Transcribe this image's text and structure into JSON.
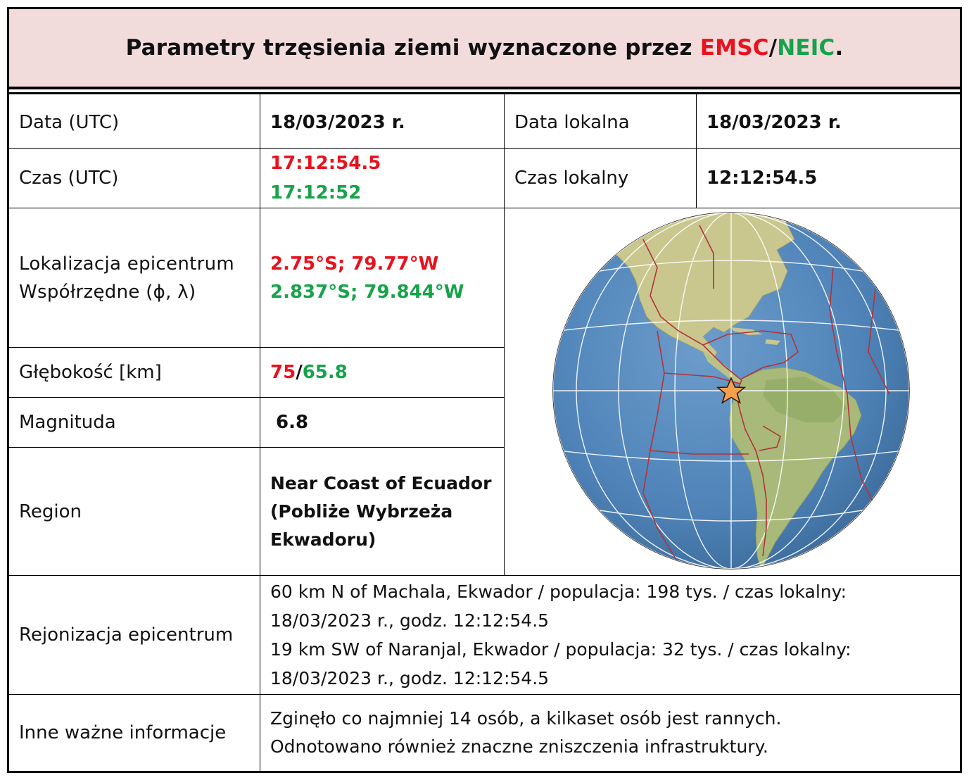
{
  "header": {
    "title_prefix": "Parametry trzęsienia ziemi wyznaczone przez ",
    "agency1": "EMSC",
    "separator": "/",
    "agency2": "NEIC",
    "suffix": "."
  },
  "colors": {
    "emsc": "#e8121e",
    "neic": "#16a34a",
    "header_bg": "#f2dcdb"
  },
  "rows": {
    "date_utc": {
      "label": "Data (UTC)",
      "value": "18/03/2023 r."
    },
    "date_local": {
      "label": "Data lokalna",
      "value": "18/03/2023 r."
    },
    "time_utc": {
      "label": "Czas (UTC)",
      "value_emsc": "17:12:54.5",
      "value_neic": "17:12:52"
    },
    "time_local": {
      "label": "Czas lokalny",
      "value": "12:12:54.5"
    },
    "location": {
      "label_line1": "Lokalizacja epicentrum",
      "label_line2": "Współrzędne (ϕ, λ)",
      "value_emsc": "2.75°S; 79.77°W",
      "value_neic": "2.837°S; 79.844°W"
    },
    "depth": {
      "label": "Głębokość [km]",
      "value_emsc": "75",
      "sep": "/",
      "value_neic": "65.8"
    },
    "magnitude": {
      "label": "Magnituda",
      "value": "6.8"
    },
    "region": {
      "label": "Region",
      "line1": "Near Coast of Ecuador",
      "line2": "(Pobliże Wybrzeża",
      "line3": "Ekwadoru)"
    },
    "regionalization": {
      "label": "Rejonizacja epicentrum",
      "line1": "60 km N of Machala, Ekwador / populacja: 198 tys. / czas lokalny:",
      "line2": "18/03/2023 r., godz. 12:12:54.5",
      "line3": "19 km SW of Naranjal, Ekwador / populacja: 32 tys. / czas lokalny:",
      "line4": "18/03/2023 r., godz. 12:12:54.5"
    },
    "other": {
      "label": "Inne ważne informacje",
      "line1": "Zginęło co najmniej 14 osób, a kilkaset osób jest rannych.",
      "line2": "Odnotowano również znaczne zniszczenia infrastruktury."
    }
  },
  "map": {
    "icon": "globe-map",
    "marker": "epicenter-star-icon"
  }
}
